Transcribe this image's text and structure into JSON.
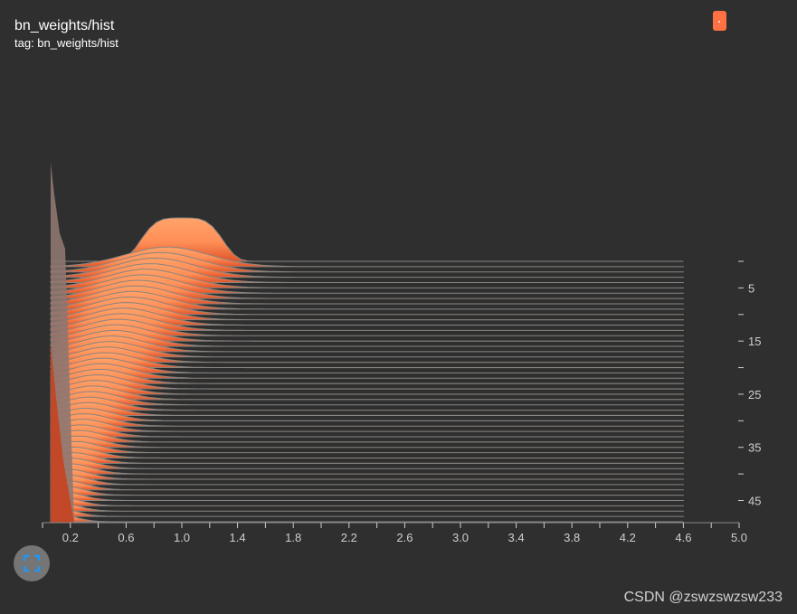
{
  "header": {
    "title": "bn_weights/hist",
    "tag": "tag: bn_weights/hist"
  },
  "colors": {
    "background": "#2f2f2f",
    "series": "#ff7043",
    "series_light": "#ffa36a",
    "series_dark": "#c9401b",
    "stroke": "#8a8580"
  },
  "controls": {
    "expand_icon": "fullscreen-expand-icon"
  },
  "watermark": "CSDN @zswzswzsw233",
  "chart_data": {
    "type": "area",
    "subtype": "ridgeline-histogram-offset",
    "title": "bn_weights/hist",
    "x_ticks": [
      "0.2",
      "0.6",
      "1.0",
      "1.4",
      "1.8",
      "2.2",
      "2.6",
      "3.0",
      "3.4",
      "3.8",
      "4.2",
      "4.6",
      "5.0"
    ],
    "xlim": [
      0.0,
      5.0
    ],
    "y_ticks": [
      "5",
      "15",
      "25",
      "35",
      "45"
    ],
    "step_range": [
      0,
      49
    ],
    "num_steps": 50,
    "first_step_peak_x": 1.0,
    "last_step_peak_x": 0.1,
    "tail_end_x": 4.6
  }
}
